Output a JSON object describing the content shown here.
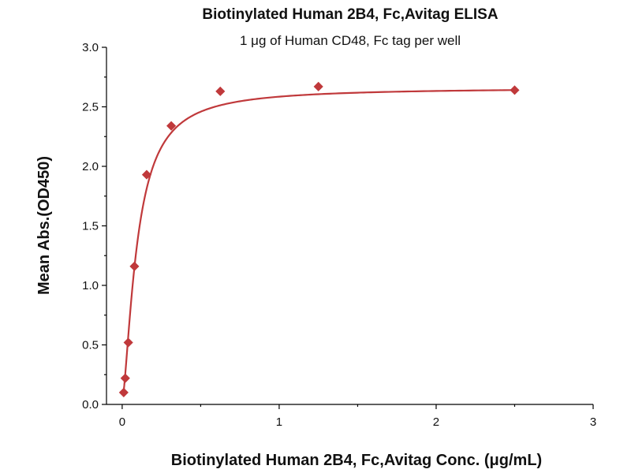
{
  "chart_data": {
    "type": "scatter",
    "title": "Biotinylated Human 2B4, Fc,Avitag ELISA",
    "subtitle": "1 μg of Human CD48, Fc tag per well",
    "xlabel": "Biotinylated Human 2B4, Fc,Avitag Conc. (μg/mL)",
    "ylabel": "Mean Abs.(OD450)",
    "xlim": [
      -0.1,
      3
    ],
    "ylim": [
      0,
      3
    ],
    "x_ticks": [
      0,
      1,
      2,
      3
    ],
    "x_tick_labels": [
      "0",
      "1",
      "2",
      "3"
    ],
    "y_ticks": [
      0.0,
      0.5,
      1.0,
      1.5,
      2.0,
      2.5,
      3.0
    ],
    "y_tick_labels": [
      "0.0",
      "0.5",
      "1.0",
      "1.5",
      "2.0",
      "2.5",
      "3.0"
    ],
    "grid": false,
    "color": "#c0393b",
    "series": [
      {
        "marker": "diamond",
        "x": [
          0.0098,
          0.0195,
          0.039,
          0.078,
          0.156,
          0.3125,
          0.625,
          1.25,
          2.5
        ],
        "y": [
          0.1,
          0.22,
          0.52,
          1.16,
          1.93,
          2.34,
          2.63,
          2.67,
          2.64
        ],
        "fit_curve": {
          "type": "4PL",
          "A": 0.03,
          "D": 2.66,
          "C": 0.095,
          "B": 1.5
        }
      }
    ]
  }
}
